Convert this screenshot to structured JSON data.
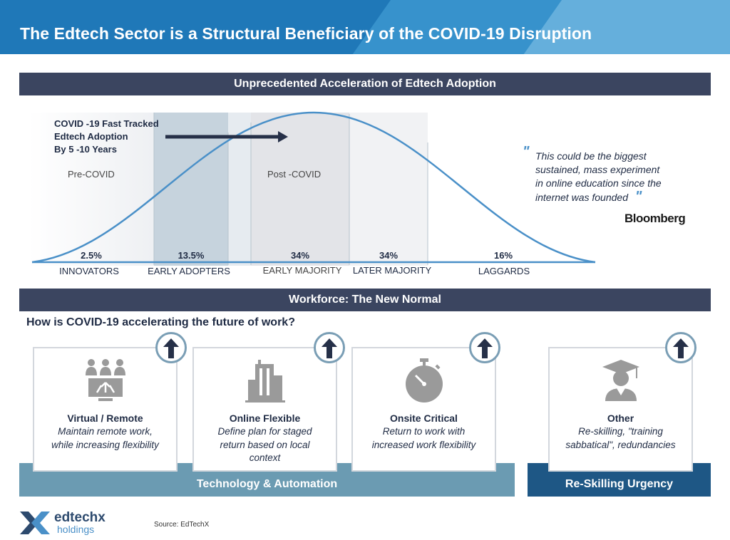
{
  "header": {
    "title": "The Edtech Sector is a Structural Beneficiary of the COVID-19 Disruption"
  },
  "adoption": {
    "section_title": "Unprecedented Acceleration of Edtech Adoption",
    "fast_track_lines": [
      "COVID -19 Fast Tracked",
      "Edtech Adoption",
      "By 5 -10 Years"
    ],
    "pre_label": "Pre-COVID",
    "post_label": "Post -COVID",
    "segments": [
      {
        "percent": "2.5%",
        "label": "INNOVATORS"
      },
      {
        "percent": "13.5%",
        "label": "EARLY ADOPTERS"
      },
      {
        "percent": "34%",
        "label": "EARLY MAJORITY"
      },
      {
        "percent": "34%",
        "label": "LATER MAJORITY"
      },
      {
        "percent": "16%",
        "label": "LAGGARDS"
      }
    ],
    "quote_lines": [
      "This could be the biggest",
      "sustained, mass experiment",
      "in online education since the",
      "internet was founded"
    ],
    "quote_source": "Bloomberg"
  },
  "workforce": {
    "section_title": "Workforce: The New Normal",
    "question": "How is COVID-19 accelerating the future of work?",
    "cards": [
      {
        "icon": "remote-workers-icon",
        "title": "Virtual / Remote",
        "desc_lines": [
          "Maintain remote work,",
          "while increasing flexibility"
        ]
      },
      {
        "icon": "office-building-icon",
        "title": "Online Flexible",
        "desc_lines": [
          "Define plan for staged",
          "return based on local",
          "context"
        ]
      },
      {
        "icon": "stopwatch-icon",
        "title": "Onsite Critical",
        "desc_lines": [
          "Return to work with",
          "increased work flexibility"
        ]
      },
      {
        "icon": "graduate-icon",
        "title": "Other",
        "desc_lines": [
          "Re-skilling, \"training",
          "sabbatical\", redundancies"
        ]
      }
    ],
    "band_technology": "Technology & Automation",
    "band_reskilling": "Re-Skilling Urgency"
  },
  "footer": {
    "logo_name": "edtechx",
    "logo_sub": "holdings",
    "source": "Source: EdTechX"
  },
  "colors": {
    "navy": "#3b4560",
    "steel": "#6b9bb2",
    "dark_blue": "#1e5785",
    "brand_blue": "#1f78b8"
  }
}
